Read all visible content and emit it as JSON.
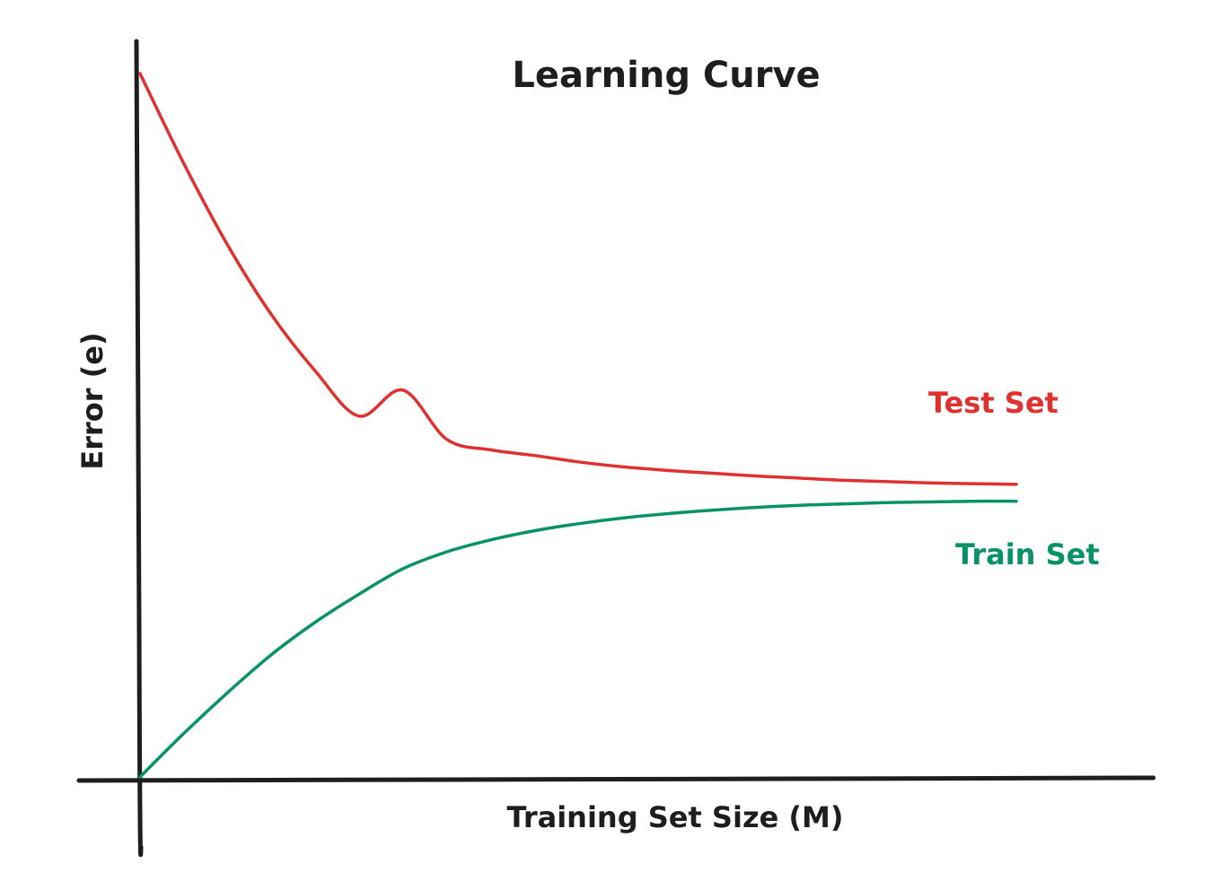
{
  "chart_data": {
    "type": "line",
    "title": "Learning Curve",
    "xlabel": "Training Set Size (M)",
    "ylabel": "Error (e)",
    "xlim": [
      0,
      100
    ],
    "ylim": [
      0,
      100
    ],
    "grid": false,
    "legend": "inline-right",
    "x": [
      0,
      5,
      10,
      15,
      20,
      25,
      30,
      35,
      40,
      45,
      50,
      55,
      60,
      65,
      70,
      75,
      80,
      85,
      90,
      95,
      100
    ],
    "series": [
      {
        "name": "Test Set",
        "color": "#e03131",
        "values": [
          100,
          87.2,
          75.6,
          65.7,
          57.7,
          51.3,
          55.0,
          48.0,
          46.5,
          45.7,
          44.8,
          44.1,
          43.6,
          43.2,
          42.8,
          42.5,
          42.2,
          42.0,
          41.8,
          41.7,
          41.6
        ]
      },
      {
        "name": "Train Set",
        "color": "#099268",
        "values": [
          0,
          6.2,
          12.0,
          17.4,
          22.0,
          26.0,
          29.6,
          32.0,
          33.7,
          35.0,
          36.0,
          36.8,
          37.4,
          37.9,
          38.3,
          38.6,
          38.8,
          39.0,
          39.1,
          39.2,
          39.2
        ]
      }
    ]
  }
}
